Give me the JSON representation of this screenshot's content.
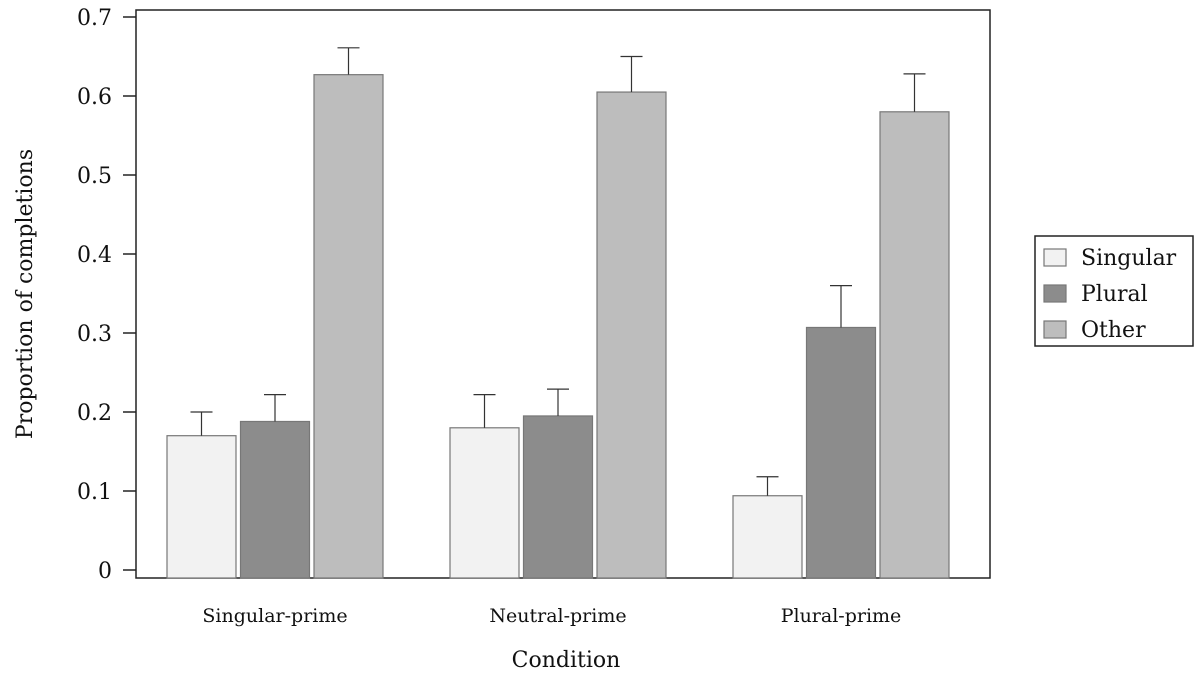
{
  "chart_data": {
    "type": "bar",
    "categories": [
      "Singular-prime",
      "Neutral-prime",
      "Plural-prime"
    ],
    "series": [
      {
        "name": "Singular",
        "color": "#f2f2f2",
        "values": [
          0.17,
          0.18,
          0.094
        ],
        "errors": [
          0.03,
          0.042,
          0.024
        ]
      },
      {
        "name": "Plural",
        "color": "#8c8c8c",
        "values": [
          0.188,
          0.195,
          0.307
        ],
        "errors": [
          0.034,
          0.034,
          0.053
        ]
      },
      {
        "name": "Other",
        "color": "#bdbdbd",
        "values": [
          0.627,
          0.605,
          0.58
        ],
        "errors": [
          0.034,
          0.045,
          0.048
        ]
      }
    ],
    "xlabel": "Condition",
    "ylabel": "Proportion of completions",
    "ylim": [
      0,
      0.7
    ],
    "yticks": [
      {
        "value": 0,
        "label": "0"
      },
      {
        "value": 0.1,
        "label": "0.1"
      },
      {
        "value": 0.2,
        "label": "0.2"
      },
      {
        "value": 0.3,
        "label": "0.3"
      },
      {
        "value": 0.4,
        "label": "0.4"
      },
      {
        "value": 0.5,
        "label": "0.5"
      },
      {
        "value": 0.6,
        "label": "0.6"
      },
      {
        "value": 0.7,
        "label": "0.7"
      }
    ],
    "grid": false,
    "legend_position": "right"
  }
}
